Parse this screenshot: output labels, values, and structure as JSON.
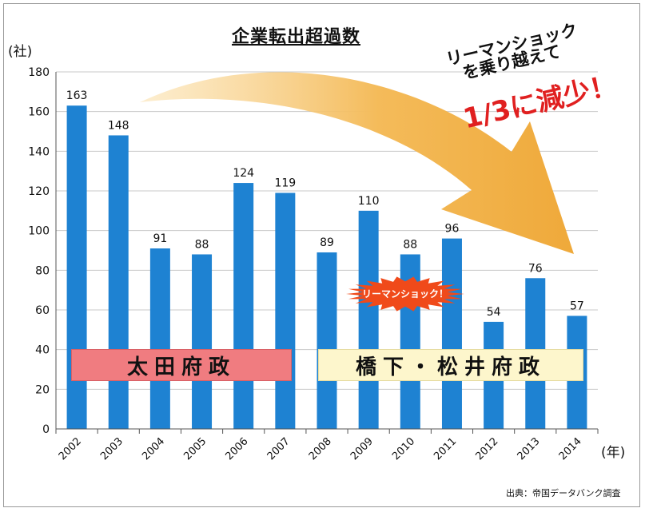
{
  "title": "企業転出超過数",
  "y_unit": "(社)",
  "x_unit": "(年)",
  "source": "出典：帝国データバンク調査",
  "eras": [
    {
      "label": "太田府政",
      "color": "#f07c80"
    },
    {
      "label": "橋下・松井府政",
      "color": "#fdf6cc"
    }
  ],
  "burst": {
    "label": "リーマンショック！",
    "color": "#f04a1a"
  },
  "callout": {
    "line1": "リーマンショック",
    "line2": "を乗り越えて",
    "line3": "1/3に減少！",
    "accent": "#e02020"
  },
  "colors": {
    "bar": "#1e82d2",
    "arrow": "#f0b24a"
  },
  "chart_data": {
    "type": "bar",
    "categories": [
      "2002",
      "2003",
      "2004",
      "2005",
      "2006",
      "2007",
      "2008",
      "2009",
      "2010",
      "2011",
      "2012",
      "2013",
      "2014"
    ],
    "values": [
      163,
      148,
      91,
      88,
      124,
      119,
      89,
      110,
      88,
      96,
      54,
      76,
      57
    ],
    "ylim": [
      0,
      180
    ],
    "yticks": [
      0,
      20,
      40,
      60,
      80,
      100,
      120,
      140,
      160,
      180
    ],
    "grid": true,
    "data_labels": true
  }
}
